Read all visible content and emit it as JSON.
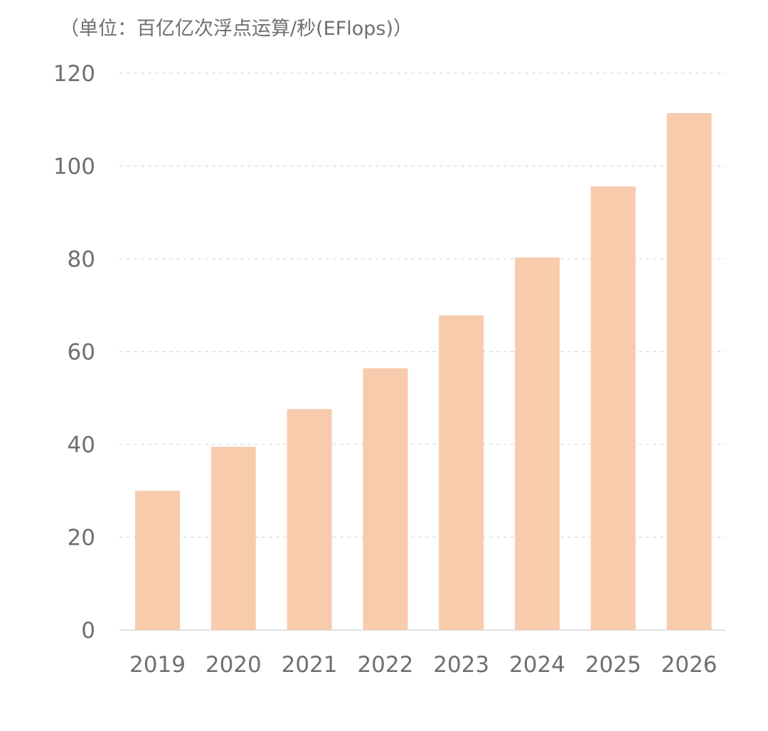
{
  "chart_data": {
    "type": "bar",
    "title": "",
    "unit_label": "（单位：百亿亿次浮点运算/秒(EFlops)）",
    "xlabel": "",
    "ylabel": "",
    "categories": [
      "2019",
      "2020",
      "2021",
      "2022",
      "2023",
      "2024",
      "2025",
      "2026"
    ],
    "values": [
      30,
      39.5,
      47.6,
      56.4,
      67.8,
      80.3,
      95.6,
      111.4
    ],
    "ylim": [
      0,
      120
    ],
    "yticks": [
      0,
      20,
      40,
      60,
      80,
      100,
      120
    ],
    "grid": true,
    "legend": "none",
    "colors": {
      "bar": "#f8cbad",
      "grid": "#d9d9d9",
      "axis_text": "#6f6f6f",
      "baseline": "#d9d9d9"
    }
  }
}
